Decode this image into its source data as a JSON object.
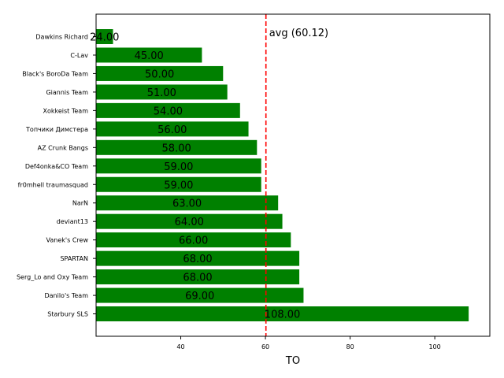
{
  "chart_data": {
    "type": "bar",
    "orientation": "horizontal",
    "title": "",
    "xlabel": "TO",
    "ylabel": "",
    "xlim": [
      20,
      113
    ],
    "xticks": [
      40,
      60,
      80,
      100
    ],
    "grid": false,
    "categories": [
      "Dawkins Richard",
      "C-Lav",
      "Black's BoroDa Team",
      "Giannis Team",
      "Xokkeist Team",
      "Топчики Димстера",
      "AZ Crunk Bangs",
      "Def4onka&CO Team",
      "fr0mhell traumasquad",
      "NarN",
      "deviant13",
      "Vanek's Crew",
      "SPARTAN",
      "Serg_Lo and Oxy Team",
      "Danilo's Team",
      "Starbury SLS"
    ],
    "values": [
      24,
      45,
      50,
      51,
      54,
      56,
      58,
      59,
      59,
      63,
      64,
      66,
      68,
      68,
      69,
      108
    ],
    "value_labels": [
      "24.00",
      "45.00",
      "50.00",
      "51.00",
      "54.00",
      "56.00",
      "58.00",
      "59.00",
      "59.00",
      "63.00",
      "64.00",
      "66.00",
      "68.00",
      "68.00",
      "69.00",
      "108.00"
    ],
    "average": {
      "value": 60.12,
      "label": "avg (60.12)"
    },
    "colors": {
      "bar": "#008000",
      "average_line": "#ff0000",
      "axis": "#000000",
      "text": "#000000"
    }
  }
}
